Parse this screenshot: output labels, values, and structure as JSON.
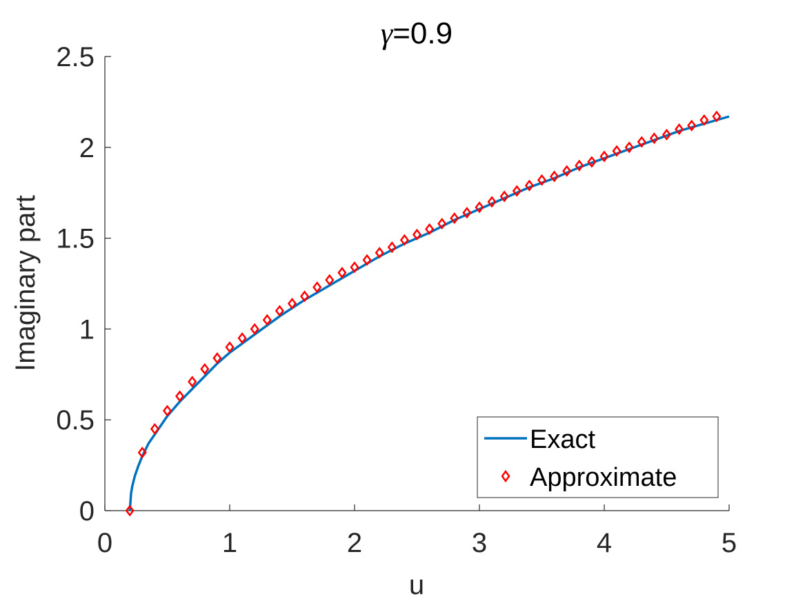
{
  "chart_data": {
    "type": "line",
    "title_symbol": "γ",
    "title_rest": "=0.9",
    "xlabel": "u",
    "ylabel": "Imaginary part",
    "xlim": [
      0,
      5
    ],
    "ylim": [
      0,
      2.5
    ],
    "xticks": [
      0,
      1,
      2,
      3,
      4,
      5
    ],
    "xtick_labels": [
      "0",
      "1",
      "2",
      "3",
      "4",
      "5"
    ],
    "yticks": [
      0,
      0.5,
      1,
      1.5,
      2,
      2.5
    ],
    "ytick_labels": [
      "0",
      "0.5",
      "1",
      "1.5",
      "2",
      "2.5"
    ],
    "grid": false,
    "legend_position": "bottom-right",
    "series": [
      {
        "name": "Exact",
        "style": "line",
        "color": "#0072BD",
        "x": [
          0.2,
          0.21,
          0.22,
          0.24,
          0.27,
          0.3,
          0.35,
          0.4,
          0.5,
          0.6,
          0.7,
          0.8,
          0.9,
          1.0,
          1.2,
          1.4,
          1.6,
          1.8,
          2.0,
          2.2,
          2.4,
          2.6,
          2.8,
          3.0,
          3.2,
          3.4,
          3.6,
          3.8,
          4.0,
          4.2,
          4.4,
          4.6,
          4.8,
          5.0
        ],
        "y": [
          0.0,
          0.095,
          0.135,
          0.19,
          0.25,
          0.3,
          0.37,
          0.42,
          0.52,
          0.6,
          0.67,
          0.74,
          0.81,
          0.87,
          0.97,
          1.07,
          1.16,
          1.24,
          1.32,
          1.4,
          1.47,
          1.53,
          1.6,
          1.66,
          1.72,
          1.78,
          1.83,
          1.89,
          1.94,
          1.99,
          2.04,
          2.09,
          2.13,
          2.17
        ]
      },
      {
        "name": "Approximate",
        "style": "marker",
        "marker": "diamond",
        "color": "#FF0000",
        "x": [
          0.2,
          0.3,
          0.4,
          0.5,
          0.6,
          0.7,
          0.8,
          0.9,
          1.0,
          1.1,
          1.2,
          1.3,
          1.4,
          1.5,
          1.6,
          1.7,
          1.8,
          1.9,
          2.0,
          2.1,
          2.2,
          2.3,
          2.4,
          2.5,
          2.6,
          2.7,
          2.8,
          2.9,
          3.0,
          3.1,
          3.2,
          3.3,
          3.4,
          3.5,
          3.6,
          3.7,
          3.8,
          3.9,
          4.0,
          4.1,
          4.2,
          4.3,
          4.4,
          4.5,
          4.6,
          4.7,
          4.8,
          4.9
        ],
        "y": [
          0.0,
          0.32,
          0.45,
          0.55,
          0.63,
          0.71,
          0.78,
          0.84,
          0.9,
          0.95,
          1.0,
          1.05,
          1.1,
          1.14,
          1.18,
          1.23,
          1.27,
          1.31,
          1.34,
          1.38,
          1.42,
          1.45,
          1.49,
          1.52,
          1.55,
          1.58,
          1.61,
          1.64,
          1.67,
          1.7,
          1.73,
          1.76,
          1.79,
          1.82,
          1.84,
          1.87,
          1.9,
          1.92,
          1.95,
          1.98,
          2.0,
          2.03,
          2.05,
          2.07,
          2.1,
          2.12,
          2.15,
          2.17
        ]
      }
    ]
  }
}
